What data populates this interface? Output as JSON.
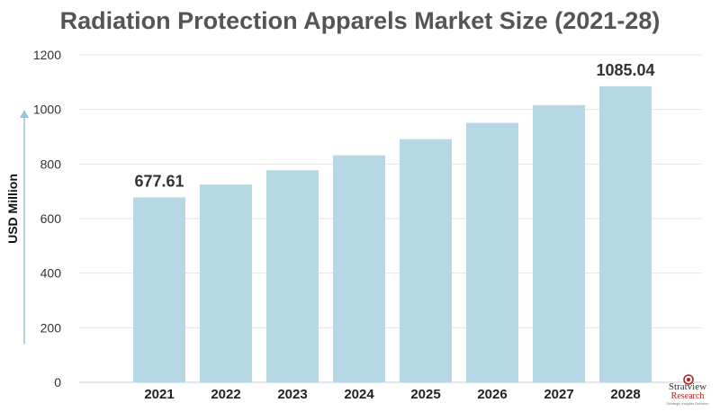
{
  "chart_data": {
    "type": "bar",
    "title": "Radiation Protection Apparels Market Size (2021-28)",
    "ylabel": "USD Million",
    "xlabel": "",
    "categories": [
      "2021",
      "2022",
      "2023",
      "2024",
      "2025",
      "2026",
      "2027",
      "2028"
    ],
    "values": [
      677.61,
      725,
      777,
      832,
      891,
      951,
      1016,
      1085.04
    ],
    "data_labels": [
      {
        "index": 0,
        "text": "677.61"
      },
      {
        "index": 7,
        "text": "1085.04"
      }
    ],
    "ylim": [
      0,
      1200
    ],
    "yticks": [
      0,
      200,
      400,
      600,
      800,
      1000,
      1200
    ],
    "grid": true,
    "bar_color": "#b6d8e5",
    "axis_arrow_color": "#9cc4d6"
  },
  "logo": {
    "brand": "Stratview",
    "sub": "Research",
    "tagline": "Strategic Insights Decision"
  }
}
